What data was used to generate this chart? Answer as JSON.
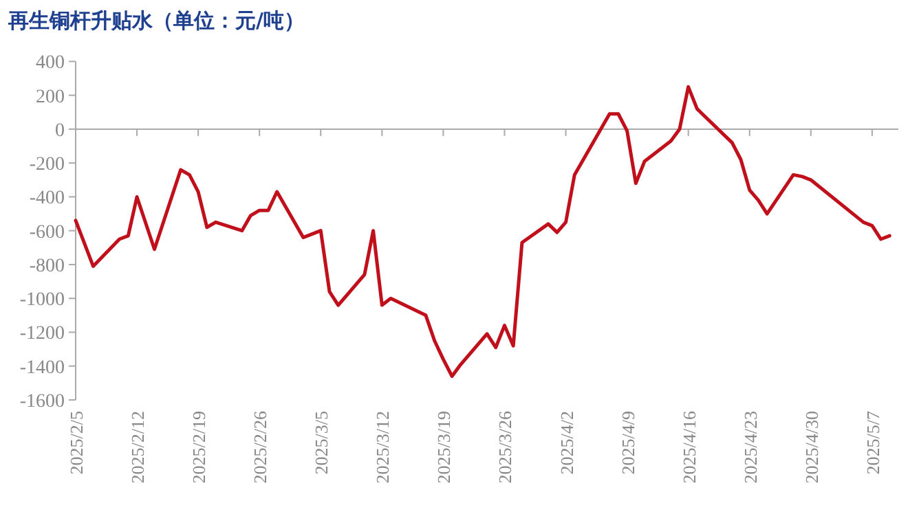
{
  "chart_data": {
    "type": "line",
    "title": "再生铜杆升贴水（单位：元/吨）",
    "color": "#c0101c",
    "marker": "none",
    "x": [
      "2025-02-05",
      "2025-02-07",
      "2025-02-10",
      "2025-02-11",
      "2025-02-12",
      "2025-02-14",
      "2025-02-17",
      "2025-02-18",
      "2025-02-19",
      "2025-02-20",
      "2025-02-21",
      "2025-02-24",
      "2025-02-25",
      "2025-02-26",
      "2025-02-27",
      "2025-02-28",
      "2025-03-03",
      "2025-03-04",
      "2025-03-05",
      "2025-03-06",
      "2025-03-07",
      "2025-03-10",
      "2025-03-11",
      "2025-03-12",
      "2025-03-13",
      "2025-03-17",
      "2025-03-18",
      "2025-03-19",
      "2025-03-20",
      "2025-03-21",
      "2025-03-24",
      "2025-03-25",
      "2025-03-26",
      "2025-03-27",
      "2025-03-28",
      "2025-03-31",
      "2025-04-01",
      "2025-04-02",
      "2025-04-03",
      "2025-04-07",
      "2025-04-08",
      "2025-04-09",
      "2025-04-10",
      "2025-04-11",
      "2025-04-14",
      "2025-04-15",
      "2025-04-16",
      "2025-04-17",
      "2025-04-18",
      "2025-04-21",
      "2025-04-22",
      "2025-04-23",
      "2025-04-24",
      "2025-04-25",
      "2025-04-28",
      "2025-04-29",
      "2025-04-30",
      "2025-05-06",
      "2025-05-07",
      "2025-05-08",
      "2025-05-09"
    ],
    "values": [
      -540,
      -810,
      -650,
      -630,
      -400,
      -710,
      -240,
      -270,
      -370,
      -580,
      -550,
      -600,
      -510,
      -480,
      -480,
      -370,
      -640,
      -620,
      -600,
      -960,
      -1040,
      -860,
      -600,
      -1040,
      -1000,
      -1100,
      -1250,
      -1360,
      -1460,
      -1390,
      -1210,
      -1290,
      -1160,
      -1280,
      -670,
      -560,
      -610,
      -550,
      -270,
      90,
      90,
      -10,
      -320,
      -190,
      -70,
      0,
      250,
      120,
      70,
      -80,
      -180,
      -360,
      -420,
      -500,
      -270,
      -280,
      -300,
      -550,
      -570,
      -650,
      -630
    ],
    "xlim": [
      "2025-02-05",
      "2025-05-10"
    ],
    "xticks": [
      {
        "value": "2025-02-05",
        "label": "2025/2/5"
      },
      {
        "value": "2025-02-12",
        "label": "2025/2/12"
      },
      {
        "value": "2025-02-19",
        "label": "2025/2/19"
      },
      {
        "value": "2025-02-26",
        "label": "2025/2/26"
      },
      {
        "value": "2025-03-05",
        "label": "2025/3/5"
      },
      {
        "value": "2025-03-12",
        "label": "2025/3/12"
      },
      {
        "value": "2025-03-19",
        "label": "2025/3/19"
      },
      {
        "value": "2025-03-26",
        "label": "2025/3/26"
      },
      {
        "value": "2025-04-02",
        "label": "2025/4/2"
      },
      {
        "value": "2025-04-09",
        "label": "2025/4/9"
      },
      {
        "value": "2025-04-16",
        "label": "2025/4/16"
      },
      {
        "value": "2025-04-23",
        "label": "2025/4/23"
      },
      {
        "value": "2025-04-30",
        "label": "2025/4/30"
      },
      {
        "value": "2025-05-07",
        "label": "2025/5/7"
      }
    ],
    "ylim": [
      -1600,
      400
    ],
    "yticks": [
      -1600,
      -1400,
      -1200,
      -1000,
      -800,
      -600,
      -400,
      -200,
      0,
      200,
      400
    ]
  }
}
